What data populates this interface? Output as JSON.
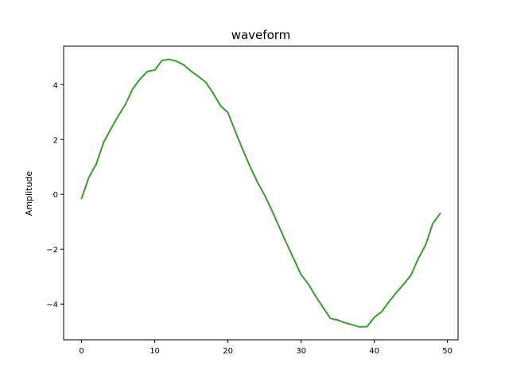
{
  "chart_data": {
    "type": "line",
    "title": "waveform",
    "xlabel": "",
    "ylabel": "Amplitude",
    "xlim": [
      -2.45,
      51.45
    ],
    "ylim": [
      -5.3,
      5.4
    ],
    "grid": false,
    "legend": "none",
    "x_ticks": [
      0,
      10,
      20,
      30,
      40,
      50
    ],
    "y_ticks": [
      -4,
      -2,
      0,
      2,
      4
    ],
    "x_tick_labels": [
      "0",
      "10",
      "20",
      "30",
      "40",
      "50"
    ],
    "y_tick_labels": [
      "−4",
      "−2",
      "0",
      "2",
      "4"
    ],
    "line_color": "#3a9a2f",
    "series": [
      {
        "x": [
          0,
          1,
          2,
          3,
          4,
          5,
          6,
          7,
          8,
          9,
          10,
          11,
          12,
          13,
          14,
          15,
          16,
          17,
          18,
          19,
          20,
          21,
          22,
          23,
          24,
          25,
          26,
          27,
          28,
          29,
          30,
          31,
          32,
          33,
          34,
          35,
          36,
          37,
          38,
          39,
          40,
          41,
          42,
          43,
          44,
          45,
          46,
          47,
          48,
          49
        ],
        "values": [
          -0.15,
          0.62,
          1.1,
          1.88,
          2.38,
          2.85,
          3.28,
          3.85,
          4.2,
          4.48,
          4.53,
          4.88,
          4.92,
          4.85,
          4.71,
          4.48,
          4.29,
          4.08,
          3.68,
          3.22,
          2.98,
          2.3,
          1.65,
          1.03,
          0.46,
          -0.02,
          -0.58,
          -1.18,
          -1.78,
          -2.35,
          -2.93,
          -3.27,
          -3.72,
          -4.12,
          -4.52,
          -4.58,
          -4.68,
          -4.75,
          -4.83,
          -4.82,
          -4.48,
          -4.28,
          -3.92,
          -3.58,
          -3.28,
          -2.95,
          -2.35,
          -1.85,
          -1.06,
          -0.7
        ]
      }
    ]
  }
}
